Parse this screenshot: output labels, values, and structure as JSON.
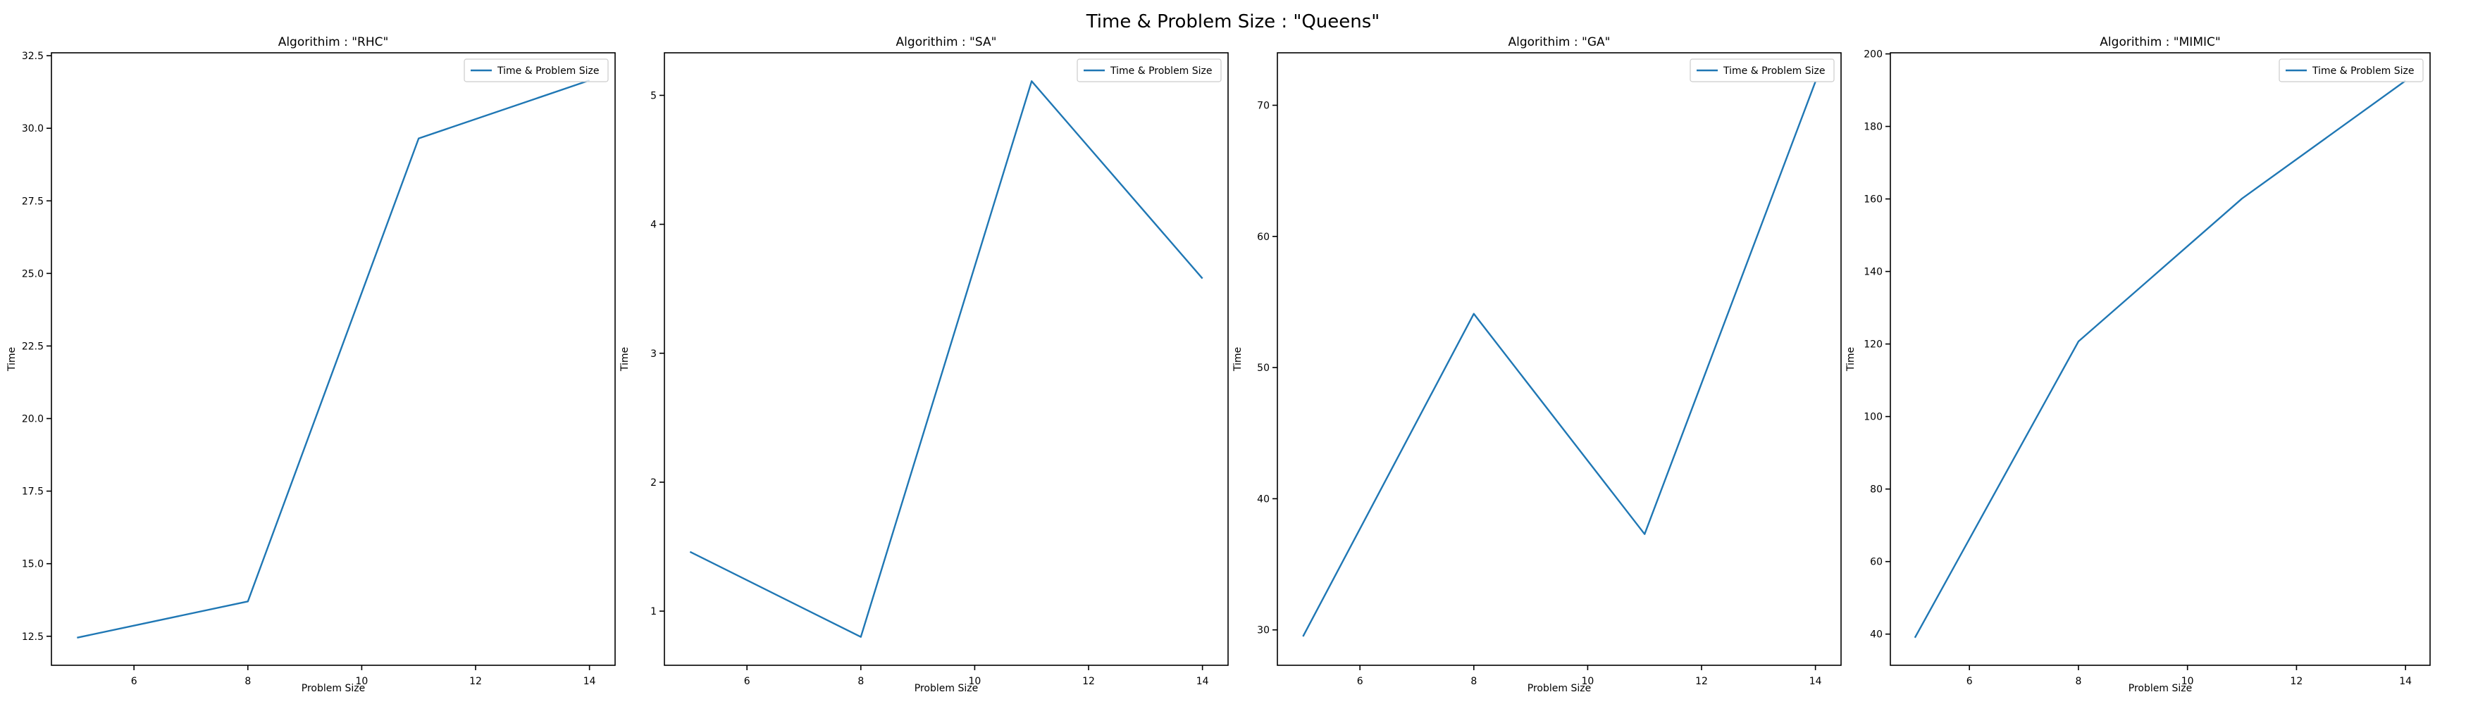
{
  "figure": {
    "title": "Time & Problem Size : \"Queens\""
  },
  "chart_data": [
    {
      "type": "line",
      "title": "Algorithim : \"RHC\"",
      "xlabel": "Problem Size",
      "ylabel": "Time",
      "xlim": [
        4.55,
        14.45
      ],
      "ylim": [
        11.5,
        32.6
      ],
      "xticks": [
        6,
        8,
        10,
        12,
        14
      ],
      "yticks": [
        12.5,
        15.0,
        17.5,
        20.0,
        22.5,
        25.0,
        27.5,
        30.0,
        32.5
      ],
      "ytick_decimals": 1,
      "legend": "upper right",
      "grid": false,
      "series": [
        {
          "name": "Time & Problem Size",
          "color": "#1f77b4",
          "x": [
            5,
            8,
            11,
            14
          ],
          "y": [
            12.45,
            13.7,
            29.65,
            31.65
          ]
        }
      ]
    },
    {
      "type": "line",
      "title": "Algorithim : \"SA\"",
      "xlabel": "Problem Size",
      "ylabel": "Time",
      "xlim": [
        4.55,
        14.45
      ],
      "ylim": [
        0.58,
        5.33
      ],
      "xticks": [
        6,
        8,
        10,
        12,
        14
      ],
      "yticks": [
        1,
        2,
        3,
        4,
        5
      ],
      "ytick_decimals": 0,
      "legend": "upper right",
      "grid": false,
      "series": [
        {
          "name": "Time & Problem Size",
          "color": "#1f77b4",
          "x": [
            5,
            8,
            11,
            14
          ],
          "y": [
            1.46,
            0.8,
            5.11,
            3.58
          ]
        }
      ]
    },
    {
      "type": "line",
      "title": "Algorithim : \"GA\"",
      "xlabel": "Problem Size",
      "ylabel": "Time",
      "xlim": [
        4.55,
        14.45
      ],
      "ylim": [
        27.3,
        74.0
      ],
      "xticks": [
        6,
        8,
        10,
        12,
        14
      ],
      "yticks": [
        30,
        40,
        50,
        60,
        70
      ],
      "ytick_decimals": 0,
      "legend": "upper right",
      "grid": false,
      "series": [
        {
          "name": "Time & Problem Size",
          "color": "#1f77b4",
          "x": [
            5,
            8,
            11,
            14
          ],
          "y": [
            29.5,
            54.1,
            37.3,
            71.8
          ]
        }
      ]
    },
    {
      "type": "line",
      "title": "Algorithim : \"MIMIC\"",
      "xlabel": "Problem Size",
      "ylabel": "Time",
      "xlim": [
        4.55,
        14.45
      ],
      "ylim": [
        31.4,
        200.3
      ],
      "xticks": [
        6,
        8,
        10,
        12,
        14
      ],
      "yticks": [
        40,
        60,
        80,
        100,
        120,
        140,
        160,
        180,
        200
      ],
      "ytick_decimals": 0,
      "legend": "upper right",
      "grid": false,
      "series": [
        {
          "name": "Time & Problem Size",
          "color": "#1f77b4",
          "x": [
            5,
            8,
            11,
            14
          ],
          "y": [
            39.0,
            120.7,
            160.1,
            192.6
          ]
        }
      ]
    }
  ]
}
